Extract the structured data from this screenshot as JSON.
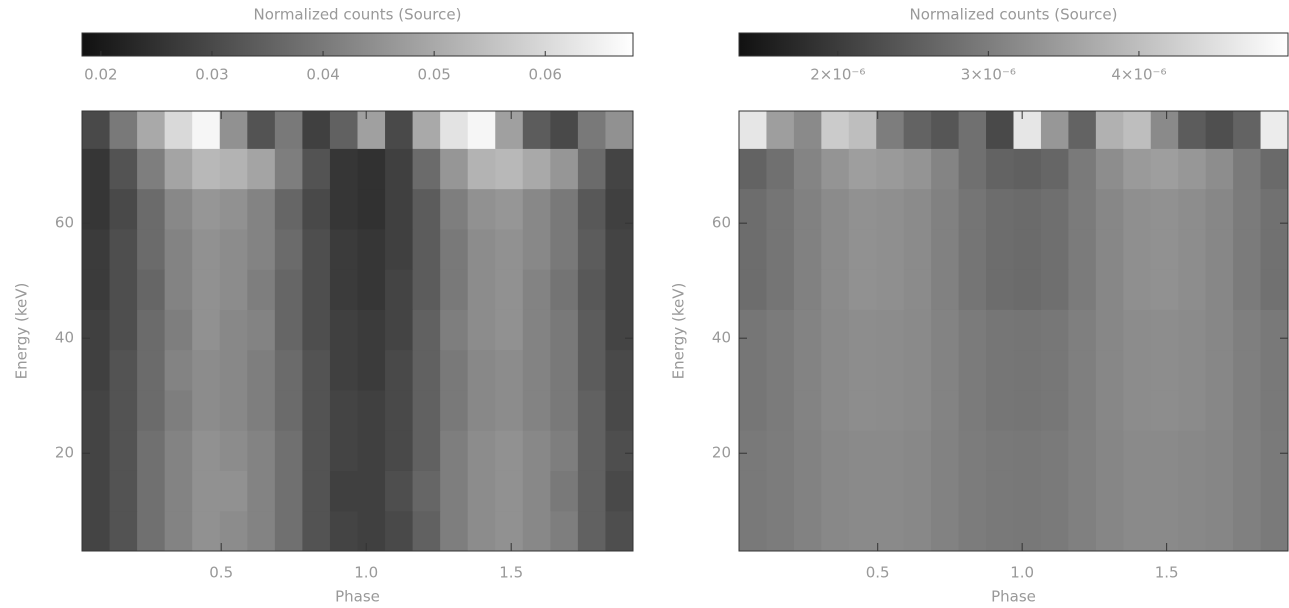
{
  "chart_data": [
    {
      "type": "heatmap",
      "title": "Normalized counts (Source)",
      "xlabel": "Phase",
      "ylabel": "Energy (keV)",
      "xbins": [
        0.02,
        0.115,
        0.21,
        0.305,
        0.4,
        0.495,
        0.59,
        0.685,
        0.78,
        0.875,
        0.97,
        1.065,
        1.16,
        1.255,
        1.35,
        1.445,
        1.54,
        1.635,
        1.73,
        1.825,
        1.92
      ],
      "ybins": [
        3,
        10,
        17,
        24,
        31,
        38,
        45,
        52,
        59,
        66,
        73,
        79.5
      ],
      "z": [
        [
          0.029,
          0.032,
          0.038,
          0.042,
          0.045,
          0.044,
          0.042,
          0.038,
          0.032,
          0.029,
          0.028,
          0.03,
          0.035,
          0.041,
          0.044,
          0.045,
          0.043,
          0.041,
          0.035,
          0.031
        ],
        [
          0.029,
          0.032,
          0.038,
          0.042,
          0.045,
          0.045,
          0.042,
          0.038,
          0.032,
          0.028,
          0.028,
          0.031,
          0.036,
          0.041,
          0.044,
          0.045,
          0.043,
          0.04,
          0.035,
          0.03
        ],
        [
          0.029,
          0.032,
          0.038,
          0.042,
          0.045,
          0.044,
          0.042,
          0.038,
          0.032,
          0.029,
          0.028,
          0.03,
          0.035,
          0.041,
          0.044,
          0.045,
          0.043,
          0.041,
          0.035,
          0.031
        ],
        [
          0.029,
          0.032,
          0.037,
          0.041,
          0.044,
          0.043,
          0.041,
          0.037,
          0.032,
          0.029,
          0.028,
          0.03,
          0.035,
          0.04,
          0.043,
          0.044,
          0.042,
          0.04,
          0.035,
          0.03
        ],
        [
          0.028,
          0.032,
          0.037,
          0.042,
          0.044,
          0.043,
          0.041,
          0.037,
          0.032,
          0.028,
          0.027,
          0.03,
          0.035,
          0.04,
          0.043,
          0.044,
          0.042,
          0.04,
          0.034,
          0.03
        ],
        [
          0.028,
          0.031,
          0.037,
          0.041,
          0.045,
          0.043,
          0.042,
          0.036,
          0.031,
          0.028,
          0.027,
          0.029,
          0.035,
          0.041,
          0.044,
          0.045,
          0.042,
          0.04,
          0.034,
          0.029
        ],
        [
          0.027,
          0.031,
          0.036,
          0.042,
          0.045,
          0.044,
          0.041,
          0.036,
          0.031,
          0.027,
          0.026,
          0.029,
          0.034,
          0.04,
          0.044,
          0.045,
          0.042,
          0.039,
          0.033,
          0.029
        ],
        [
          0.027,
          0.031,
          0.037,
          0.042,
          0.045,
          0.044,
          0.042,
          0.037,
          0.031,
          0.027,
          0.026,
          0.028,
          0.034,
          0.04,
          0.044,
          0.045,
          0.043,
          0.04,
          0.034,
          0.029
        ],
        [
          0.026,
          0.03,
          0.037,
          0.043,
          0.046,
          0.045,
          0.042,
          0.036,
          0.03,
          0.026,
          0.025,
          0.028,
          0.034,
          0.041,
          0.045,
          0.046,
          0.043,
          0.04,
          0.033,
          0.028
        ],
        [
          0.026,
          0.032,
          0.041,
          0.049,
          0.053,
          0.052,
          0.049,
          0.041,
          0.032,
          0.026,
          0.025,
          0.028,
          0.037,
          0.046,
          0.052,
          0.053,
          0.05,
          0.046,
          0.037,
          0.029
        ],
        [
          0.03,
          0.04,
          0.05,
          0.06,
          0.066,
          0.045,
          0.032,
          0.04,
          0.028,
          0.035,
          0.048,
          0.03,
          0.05,
          0.062,
          0.066,
          0.048,
          0.034,
          0.03,
          0.04,
          0.045
        ]
      ],
      "xlim": [
        0.02,
        1.92
      ],
      "ylim": [
        3,
        79.5
      ],
      "xticks": [
        0.5,
        {
          "value": 1.0,
          "label": "1.0"
        },
        1.5
      ],
      "yticks": [
        20,
        40,
        60
      ],
      "zlim": [
        0.0183,
        0.0679
      ],
      "zticks": [
        0.02,
        0.03,
        0.04,
        0.05,
        0.06
      ]
    },
    {
      "type": "heatmap",
      "title": "Normalized counts (Source)",
      "xlabel": "Phase",
      "ylabel": "Energy (keV)",
      "xbins": [
        0.02,
        0.115,
        0.21,
        0.305,
        0.4,
        0.495,
        0.59,
        0.685,
        0.78,
        0.875,
        0.97,
        1.065,
        1.16,
        1.255,
        1.35,
        1.445,
        1.54,
        1.635,
        1.73,
        1.825,
        1.92
      ],
      "ybins": [
        3,
        10,
        17,
        24,
        31,
        38,
        45,
        52,
        59,
        66,
        73,
        79.5
      ],
      "z": [
        [
          2.93e-06,
          2.99e-06,
          3.08e-06,
          3.16e-06,
          3.2e-06,
          3.19e-06,
          3.16e-06,
          3.08e-06,
          2.99e-06,
          2.93e-06,
          2.92e-06,
          2.95e-06,
          3.04e-06,
          3.13e-06,
          3.19e-06,
          3.2e-06,
          3.17e-06,
          3.13e-06,
          3.04e-06,
          2.96e-06
        ],
        [
          2.93e-06,
          2.99e-06,
          3.08e-06,
          3.16e-06,
          3.2e-06,
          3.19e-06,
          3.16e-06,
          3.08e-06,
          2.99e-06,
          2.93e-06,
          2.92e-06,
          2.95e-06,
          3.04e-06,
          3.13e-06,
          3.19e-06,
          3.2e-06,
          3.17e-06,
          3.13e-06,
          3.04e-06,
          2.96e-06
        ],
        [
          2.93e-06,
          2.99e-06,
          3.08e-06,
          3.16e-06,
          3.2e-06,
          3.19e-06,
          3.16e-06,
          3.08e-06,
          2.99e-06,
          2.93e-06,
          2.92e-06,
          2.95e-06,
          3.04e-06,
          3.13e-06,
          3.19e-06,
          3.2e-06,
          3.17e-06,
          3.13e-06,
          3.04e-06,
          2.96e-06
        ],
        [
          2.89e-06,
          2.97e-06,
          3.09e-06,
          3.19e-06,
          3.25e-06,
          3.23e-06,
          3.19e-06,
          3.09e-06,
          2.97e-06,
          2.89e-06,
          2.87e-06,
          2.91e-06,
          3.03e-06,
          3.15e-06,
          3.23e-06,
          3.25e-06,
          3.21e-06,
          3.15e-06,
          3.03e-06,
          2.93e-06
        ],
        [
          2.89e-06,
          2.97e-06,
          3.09e-06,
          3.19e-06,
          3.25e-06,
          3.23e-06,
          3.19e-06,
          3.09e-06,
          2.97e-06,
          2.89e-06,
          2.87e-06,
          2.91e-06,
          3.03e-06,
          3.15e-06,
          3.23e-06,
          3.25e-06,
          3.21e-06,
          3.15e-06,
          3.03e-06,
          2.93e-06
        ],
        [
          2.89e-06,
          2.97e-06,
          3.09e-06,
          3.19e-06,
          3.25e-06,
          3.23e-06,
          3.19e-06,
          3.09e-06,
          2.97e-06,
          2.89e-06,
          2.87e-06,
          2.91e-06,
          3.03e-06,
          3.15e-06,
          3.23e-06,
          3.25e-06,
          3.21e-06,
          3.15e-06,
          3.03e-06,
          2.93e-06
        ],
        [
          2.76e-06,
          2.88e-06,
          3.06e-06,
          3.21e-06,
          3.3e-06,
          3.27e-06,
          3.21e-06,
          3.06e-06,
          2.88e-06,
          2.76e-06,
          2.73e-06,
          2.79e-06,
          2.97e-06,
          3.15e-06,
          3.27e-06,
          3.3e-06,
          3.24e-06,
          3.15e-06,
          2.97e-06,
          2.82e-06
        ],
        [
          2.76e-06,
          2.88e-06,
          3.06e-06,
          3.21e-06,
          3.3e-06,
          3.27e-06,
          3.21e-06,
          3.06e-06,
          2.88e-06,
          2.76e-06,
          2.73e-06,
          2.79e-06,
          2.97e-06,
          3.15e-06,
          3.27e-06,
          3.3e-06,
          3.24e-06,
          3.15e-06,
          2.97e-06,
          2.82e-06
        ],
        [
          2.76e-06,
          2.88e-06,
          3.06e-06,
          3.21e-06,
          3.3e-06,
          3.27e-06,
          3.21e-06,
          3.06e-06,
          2.88e-06,
          2.76e-06,
          2.73e-06,
          2.79e-06,
          2.97e-06,
          3.15e-06,
          3.27e-06,
          3.3e-06,
          3.24e-06,
          3.15e-06,
          2.97e-06,
          2.82e-06
        ],
        [
          2.6e-06,
          2.8e-06,
          3.1e-06,
          3.35e-06,
          3.5e-06,
          3.45e-06,
          3.35e-06,
          3.1e-06,
          2.8e-06,
          2.6e-06,
          2.55e-06,
          2.65e-06,
          2.95e-06,
          3.25e-06,
          3.45e-06,
          3.5e-06,
          3.4e-06,
          3.25e-06,
          2.95e-06,
          2.7e-06
        ],
        [
          4.6e-06,
          3.5e-06,
          3.2e-06,
          4.2e-06,
          4e-06,
          3e-06,
          2.6e-06,
          2.4e-06,
          2.8e-06,
          2.2e-06,
          4.6e-06,
          3.4e-06,
          2.6e-06,
          3.8e-06,
          4e-06,
          3.2e-06,
          2.5e-06,
          2.3e-06,
          2.6e-06,
          4.7e-06
        ]
      ],
      "xlim": [
        0.02,
        1.92
      ],
      "ylim": [
        3,
        79.5
      ],
      "xticks": [
        0.5,
        {
          "value": 1.0,
          "label": "1.0"
        },
        1.5
      ],
      "yticks": [
        20,
        40,
        60
      ],
      "zlim": [
        1.344e-06,
        4.99e-06
      ],
      "zticks": [
        {
          "value": 2e-06,
          "label": "2×10⁻⁶"
        },
        {
          "value": 3e-06,
          "label": "3×10⁻⁶"
        },
        {
          "value": 4e-06,
          "label": "4×10⁻⁶"
        }
      ]
    }
  ]
}
